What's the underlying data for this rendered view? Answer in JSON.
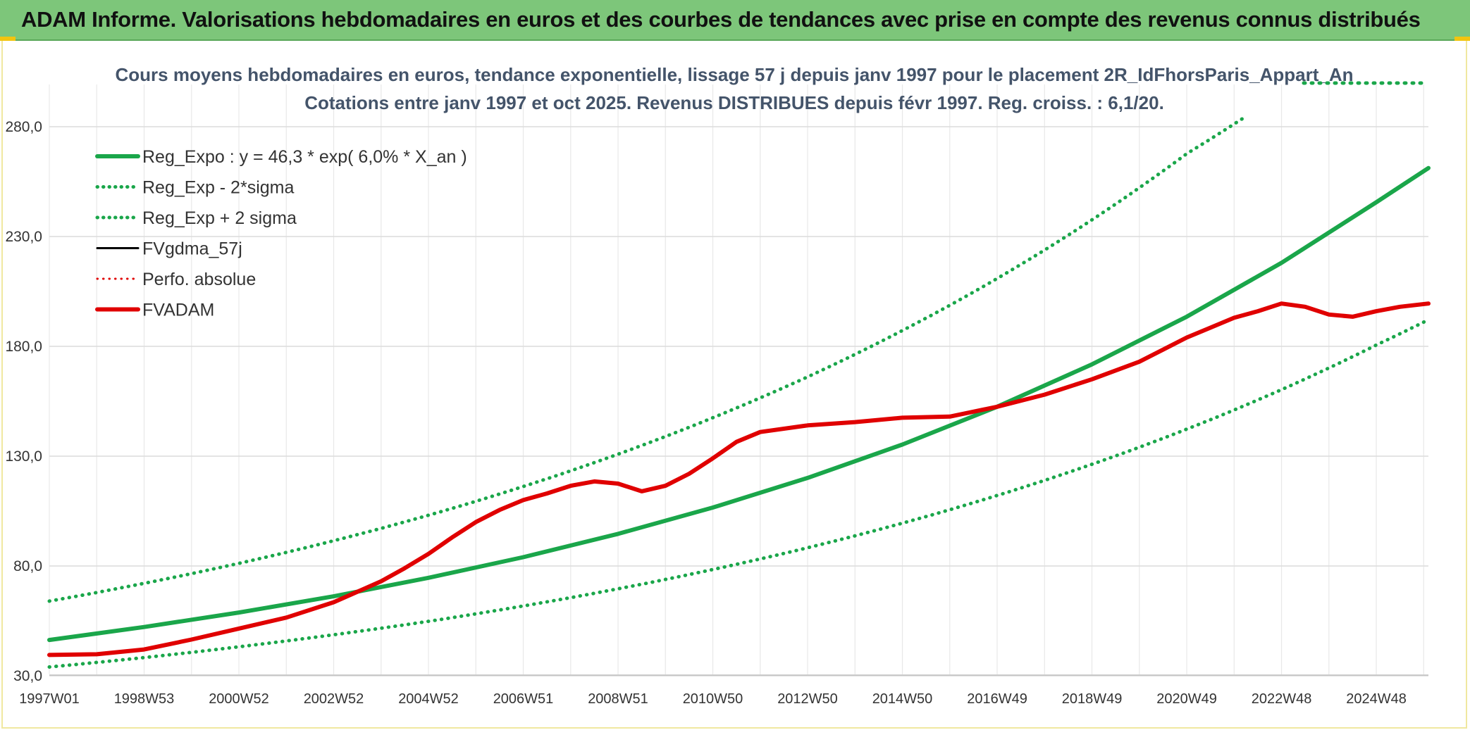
{
  "banner": {
    "title": "ADAM Informe. Valorisations hebdomadaires en euros et des courbes de tendances avec prise en compte des revenus connus distribués"
  },
  "chart_data": {
    "type": "line",
    "title": "Cours moyens hebdomadaires en euros, tendance exponentielle, lissage 57 j depuis janv 1997 pour le placement 2R_IdFhorsParis_Appart_An",
    "subtitle": "Cotations entre janv 1997 et oct 2025. Revenus DISTRIBUES depuis févr 1997. Reg. croiss. : 6,1/20.",
    "xlabel": "",
    "ylabel": "",
    "ylim": [
      30,
      300
    ],
    "xlim": [
      0,
      29.1
    ],
    "grid": true,
    "legend_position": "top-left",
    "y_ticks": [
      {
        "value": 30,
        "label": "30,0"
      },
      {
        "value": 80,
        "label": "80,0"
      },
      {
        "value": 130,
        "label": "130,0"
      },
      {
        "value": 180,
        "label": "180,0"
      },
      {
        "value": 230,
        "label": "230,0"
      },
      {
        "value": 280,
        "label": "280,0"
      }
    ],
    "x_ticks": [
      {
        "value": 0,
        "label": "1997W01"
      },
      {
        "value": 2,
        "label": "1998W53"
      },
      {
        "value": 4,
        "label": "2000W52"
      },
      {
        "value": 6,
        "label": "2002W52"
      },
      {
        "value": 8,
        "label": "2004W52"
      },
      {
        "value": 10,
        "label": "2006W51"
      },
      {
        "value": 12,
        "label": "2008W51"
      },
      {
        "value": 14,
        "label": "2010W50"
      },
      {
        "value": 16,
        "label": "2012W50"
      },
      {
        "value": 18,
        "label": "2014W50"
      },
      {
        "value": 20,
        "label": "2016W49"
      },
      {
        "value": 22,
        "label": "2018W49"
      },
      {
        "value": 24,
        "label": "2020W49"
      },
      {
        "value": 26,
        "label": "2022W48"
      },
      {
        "value": 28,
        "label": "2024W48"
      }
    ],
    "series": [
      {
        "name": "Reg_Expo : y = 46,3 * exp( 6,0% *  X_an )",
        "style": "solid",
        "color": "#1aa64a",
        "width": 6,
        "x": [
          0,
          2,
          4,
          6,
          8,
          10,
          12,
          14,
          16,
          18,
          20,
          22,
          24,
          26,
          28,
          29.1
        ],
        "y": [
          46.3,
          52.2,
          58.8,
          66.2,
          74.6,
          84.0,
          94.6,
          106.6,
          120.1,
          135.3,
          152.5,
          171.8,
          193.5,
          218.0,
          245.6,
          261.2
        ]
      },
      {
        "name": "Reg_Exp - 2*sigma",
        "style": "dotted",
        "color": "#1aa64a",
        "width": 5,
        "x": [
          0,
          2,
          4,
          6,
          8,
          10,
          12,
          14,
          16,
          18,
          20,
          22,
          24,
          26,
          28,
          29.1
        ],
        "y": [
          34.0,
          38.3,
          43.2,
          48.7,
          54.8,
          61.8,
          69.6,
          78.4,
          88.3,
          99.5,
          112.1,
          126.3,
          142.3,
          160.3,
          180.6,
          192.1
        ]
      },
      {
        "name": "Reg_Exp + 2 sigma",
        "style": "dotted",
        "color": "#1aa64a",
        "width": 5,
        "x": [
          0,
          2,
          4,
          6,
          8,
          10,
          12,
          14,
          16,
          18,
          20,
          22,
          24,
          25.2
        ],
        "y": [
          64.0,
          72.1,
          81.2,
          91.5,
          103.1,
          116.2,
          130.9,
          147.5,
          166.1,
          187.2,
          210.9,
          237.6,
          267.7,
          284.0
        ]
      },
      {
        "name": "FVgdma_57j",
        "style": "solid",
        "color": "#000000",
        "width": 3,
        "x": [],
        "y": []
      },
      {
        "name": "Perfo. absolue",
        "style": "dotted",
        "color": "#e00000",
        "width": 3,
        "x": [],
        "y": []
      },
      {
        "name": "FVADAM",
        "style": "solid",
        "color": "#e00000",
        "width": 6,
        "x": [
          0,
          1,
          2,
          3,
          4,
          5,
          6,
          7,
          7.5,
          8,
          8.5,
          9,
          9.5,
          10,
          10.5,
          11,
          11.5,
          12,
          12.5,
          13,
          13.5,
          14,
          14.5,
          15,
          16,
          17,
          18,
          19,
          20,
          21,
          22,
          23,
          23.5,
          24,
          24.5,
          25,
          25.5,
          26,
          26.5,
          27,
          27.5,
          28,
          28.5,
          29.1
        ],
        "y": [
          39.5,
          39.8,
          42.0,
          46.5,
          51.5,
          56.5,
          63.5,
          73.0,
          79.0,
          85.5,
          93.0,
          100.0,
          105.5,
          110.0,
          113.0,
          116.5,
          118.5,
          117.5,
          114.0,
          116.5,
          122.0,
          129.0,
          136.5,
          141.0,
          144.0,
          145.5,
          147.5,
          148.0,
          152.5,
          158.0,
          165.0,
          173.0,
          178.5,
          184.0,
          188.5,
          193.0,
          196.0,
          199.5,
          198.0,
          194.5,
          193.5,
          196.0,
          198.0,
          199.5
        ]
      }
    ]
  }
}
